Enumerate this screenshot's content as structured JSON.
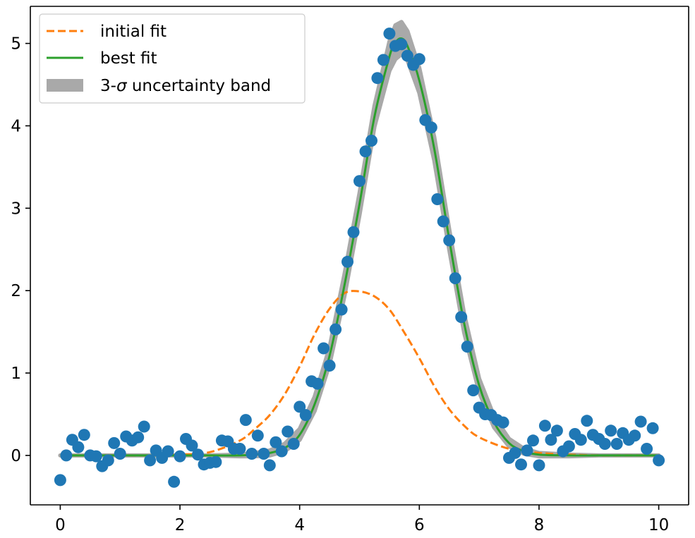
{
  "chart_data": {
    "type": "scatter",
    "title": "",
    "xlabel": "",
    "ylabel": "",
    "xlim": [
      -0.5,
      10.5
    ],
    "ylim": [
      -0.6,
      5.45
    ],
    "xticks": [
      0,
      2,
      4,
      6,
      8,
      10
    ],
    "yticks": [
      0,
      1,
      2,
      3,
      4,
      5
    ],
    "x_tick_labels": [
      "0",
      "2",
      "4",
      "6",
      "8",
      "10"
    ],
    "y_tick_labels": [
      "0",
      "1",
      "2",
      "3",
      "4",
      "5"
    ],
    "grid": false,
    "legend_position": "top-left",
    "legend": {
      "initial_label": "initial fit",
      "best_label": "best fit",
      "band_label_prefix": "3-",
      "band_label_sigma": "σ",
      "band_label_suffix": " uncertainty band"
    },
    "colors": {
      "data": "#1f77b4",
      "initial_fit": "#ff7f0e",
      "best_fit": "#2ca02c",
      "band": "#a9a9a9"
    },
    "series": [
      {
        "name": "data",
        "kind": "scatter",
        "points": [
          [
            0.0,
            -0.3
          ],
          [
            0.1,
            0.0
          ],
          [
            0.2,
            0.19
          ],
          [
            0.3,
            0.1
          ],
          [
            0.4,
            0.25
          ],
          [
            0.5,
            0.0
          ],
          [
            0.6,
            -0.01
          ],
          [
            0.7,
            -0.13
          ],
          [
            0.8,
            -0.06
          ],
          [
            0.9,
            0.15
          ],
          [
            1.0,
            0.02
          ],
          [
            1.1,
            0.23
          ],
          [
            1.2,
            0.18
          ],
          [
            1.3,
            0.22
          ],
          [
            1.4,
            0.35
          ],
          [
            1.5,
            -0.06
          ],
          [
            1.6,
            0.06
          ],
          [
            1.7,
            -0.03
          ],
          [
            1.8,
            0.05
          ],
          [
            1.9,
            -0.32
          ],
          [
            2.0,
            -0.01
          ],
          [
            2.1,
            0.2
          ],
          [
            2.2,
            0.12
          ],
          [
            2.3,
            0.01
          ],
          [
            2.4,
            -0.11
          ],
          [
            2.5,
            -0.09
          ],
          [
            2.6,
            -0.08
          ],
          [
            2.7,
            0.18
          ],
          [
            2.8,
            0.17
          ],
          [
            2.9,
            0.08
          ],
          [
            3.0,
            0.08
          ],
          [
            3.1,
            0.43
          ],
          [
            3.2,
            0.02
          ],
          [
            3.3,
            0.24
          ],
          [
            3.4,
            0.02
          ],
          [
            3.5,
            -0.12
          ],
          [
            3.6,
            0.16
          ],
          [
            3.7,
            0.05
          ],
          [
            3.8,
            0.29
          ],
          [
            3.9,
            0.14
          ],
          [
            4.0,
            0.59
          ],
          [
            4.1,
            0.49
          ],
          [
            4.2,
            0.9
          ],
          [
            4.3,
            0.87
          ],
          [
            4.4,
            1.3
          ],
          [
            4.5,
            1.09
          ],
          [
            4.6,
            1.53
          ],
          [
            4.7,
            1.77
          ],
          [
            4.8,
            2.35
          ],
          [
            4.9,
            2.71
          ],
          [
            5.0,
            3.33
          ],
          [
            5.1,
            3.69
          ],
          [
            5.2,
            3.82
          ],
          [
            5.3,
            4.58
          ],
          [
            5.4,
            4.8
          ],
          [
            5.5,
            5.12
          ],
          [
            5.6,
            4.97
          ],
          [
            5.7,
            4.99
          ],
          [
            5.8,
            4.85
          ],
          [
            5.9,
            4.74
          ],
          [
            6.0,
            4.81
          ],
          [
            6.1,
            4.07
          ],
          [
            6.2,
            3.98
          ],
          [
            6.3,
            3.11
          ],
          [
            6.4,
            2.84
          ],
          [
            6.5,
            2.61
          ],
          [
            6.6,
            2.15
          ],
          [
            6.7,
            1.68
          ],
          [
            6.8,
            1.32
          ],
          [
            6.9,
            0.79
          ],
          [
            7.0,
            0.58
          ],
          [
            7.1,
            0.5
          ],
          [
            7.2,
            0.49
          ],
          [
            7.3,
            0.43
          ],
          [
            7.4,
            0.4
          ],
          [
            7.5,
            -0.03
          ],
          [
            7.6,
            0.03
          ],
          [
            7.7,
            -0.11
          ],
          [
            7.8,
            0.06
          ],
          [
            7.9,
            0.18
          ],
          [
            8.0,
            -0.12
          ],
          [
            8.1,
            0.36
          ],
          [
            8.2,
            0.19
          ],
          [
            8.3,
            0.3
          ],
          [
            8.4,
            0.05
          ],
          [
            8.5,
            0.11
          ],
          [
            8.6,
            0.26
          ],
          [
            8.7,
            0.19
          ],
          [
            8.8,
            0.42
          ],
          [
            8.9,
            0.25
          ],
          [
            9.0,
            0.2
          ],
          [
            9.1,
            0.14
          ],
          [
            9.2,
            0.3
          ],
          [
            9.3,
            0.14
          ],
          [
            9.4,
            0.27
          ],
          [
            9.5,
            0.19
          ],
          [
            9.6,
            0.24
          ],
          [
            9.7,
            0.41
          ],
          [
            9.8,
            0.08
          ],
          [
            9.9,
            0.33
          ],
          [
            10.0,
            -0.06
          ]
        ]
      },
      {
        "name": "initial fit",
        "kind": "line",
        "style": "dashed",
        "x": [
          0,
          0.5,
          1,
          1.5,
          2,
          2.5,
          3,
          3.25,
          3.5,
          3.75,
          4,
          4.25,
          4.5,
          4.75,
          5,
          5.25,
          5.5,
          5.75,
          6,
          6.25,
          6.5,
          6.75,
          7,
          7.5,
          8,
          8.5,
          9,
          9.5,
          10
        ],
        "y": [
          0.0,
          0.0,
          0.0,
          0.0,
          0.01,
          0.04,
          0.18,
          0.32,
          0.49,
          0.74,
          1.08,
          1.47,
          1.78,
          1.97,
          1.99,
          1.93,
          1.77,
          1.49,
          1.18,
          0.84,
          0.56,
          0.36,
          0.22,
          0.08,
          0.03,
          0.01,
          0.0,
          0.0,
          0.0
        ]
      },
      {
        "name": "best fit",
        "kind": "line",
        "style": "solid",
        "x": [
          0,
          0.5,
          1,
          1.5,
          2,
          2.5,
          3,
          3.25,
          3.5,
          3.75,
          4,
          4.25,
          4.5,
          4.75,
          5,
          5.25,
          5.5,
          5.6,
          5.7,
          5.8,
          6,
          6.25,
          6.5,
          6.75,
          7,
          7.25,
          7.5,
          7.75,
          8,
          8.5,
          9,
          9.5,
          10
        ],
        "y": [
          0.0,
          0.0,
          0.0,
          0.0,
          0.0,
          0.0,
          0.0,
          0.01,
          0.03,
          0.09,
          0.25,
          0.62,
          1.21,
          2.07,
          3.05,
          4.11,
          4.84,
          5.01,
          5.06,
          4.97,
          4.55,
          3.72,
          2.62,
          1.6,
          0.85,
          0.4,
          0.15,
          0.05,
          0.01,
          0.0,
          0.0,
          0.0,
          0.0
        ]
      },
      {
        "name": "3-σ uncertainty band",
        "kind": "band",
        "x": [
          0,
          0.5,
          1,
          1.5,
          2,
          2.5,
          3,
          3.25,
          3.5,
          3.75,
          4,
          4.25,
          4.5,
          4.75,
          5,
          5.25,
          5.5,
          5.6,
          5.7,
          5.8,
          6,
          6.25,
          6.5,
          6.75,
          7,
          7.25,
          7.5,
          7.75,
          8,
          8.5,
          9,
          9.5,
          10
        ],
        "lower": [
          0.0,
          0.0,
          0.0,
          0.0,
          0.0,
          0.0,
          -0.01,
          -0.01,
          0.0,
          0.05,
          0.19,
          0.54,
          1.11,
          1.94,
          2.92,
          3.99,
          4.67,
          4.81,
          4.87,
          4.8,
          4.4,
          3.58,
          2.5,
          1.49,
          0.77,
          0.34,
          0.11,
          0.02,
          -0.01,
          -0.01,
          0.0,
          0.0,
          0.0
        ],
        "upper": [
          0.0,
          0.0,
          0.0,
          0.0,
          0.0,
          0.0,
          0.01,
          0.03,
          0.06,
          0.14,
          0.32,
          0.71,
          1.31,
          2.2,
          3.18,
          4.24,
          5.02,
          5.22,
          5.26,
          5.15,
          4.7,
          3.86,
          2.74,
          1.71,
          0.93,
          0.47,
          0.2,
          0.08,
          0.03,
          0.01,
          0.0,
          0.0,
          0.0
        ]
      }
    ]
  }
}
